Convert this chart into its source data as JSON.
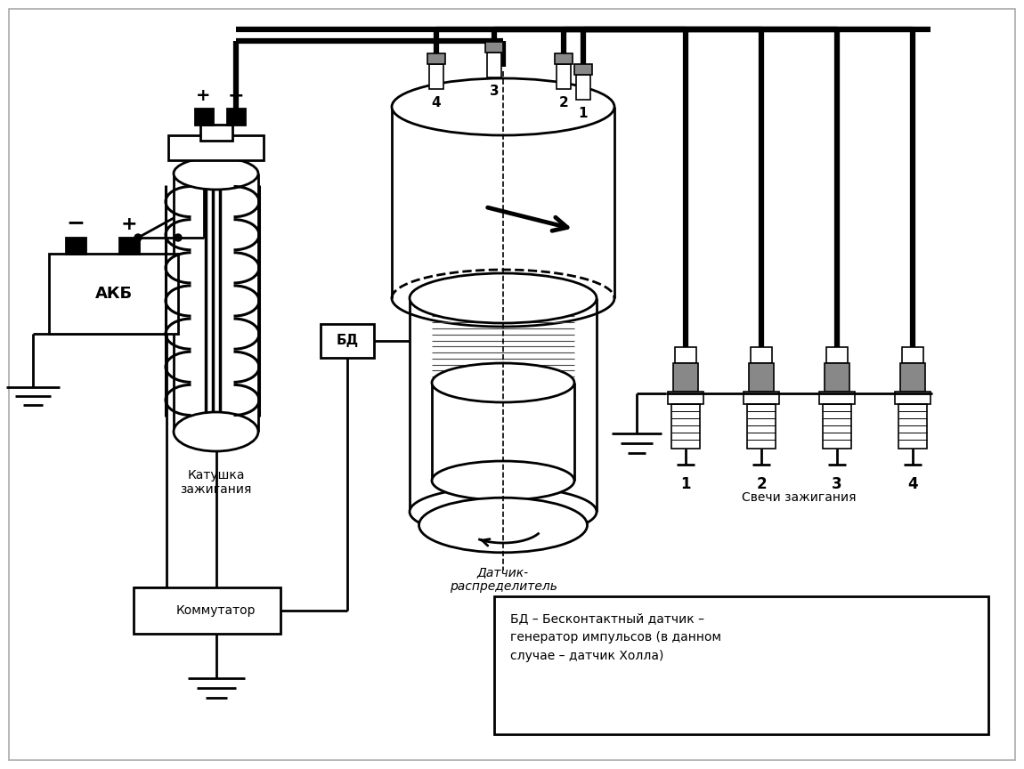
{
  "bg_color": "#ffffff",
  "text_akb": "АКБ",
  "text_katushka": "Катушка\nзажигания",
  "text_bd": "БД",
  "text_kommutator": "Коммутатор",
  "text_datchik": "Датчик-\nраспределитель",
  "text_svechi": "Свечи зажигания",
  "text_legend": "БД – Бесконтактный датчик –\nгенератор импульсов (в данном\nслучае – датчик Холла)",
  "figsize": [
    11.5,
    8.64
  ],
  "dpi": 100,
  "lw_thin": 1.2,
  "lw_med": 2.0,
  "lw_thick": 4.5,
  "gray": "#888888"
}
